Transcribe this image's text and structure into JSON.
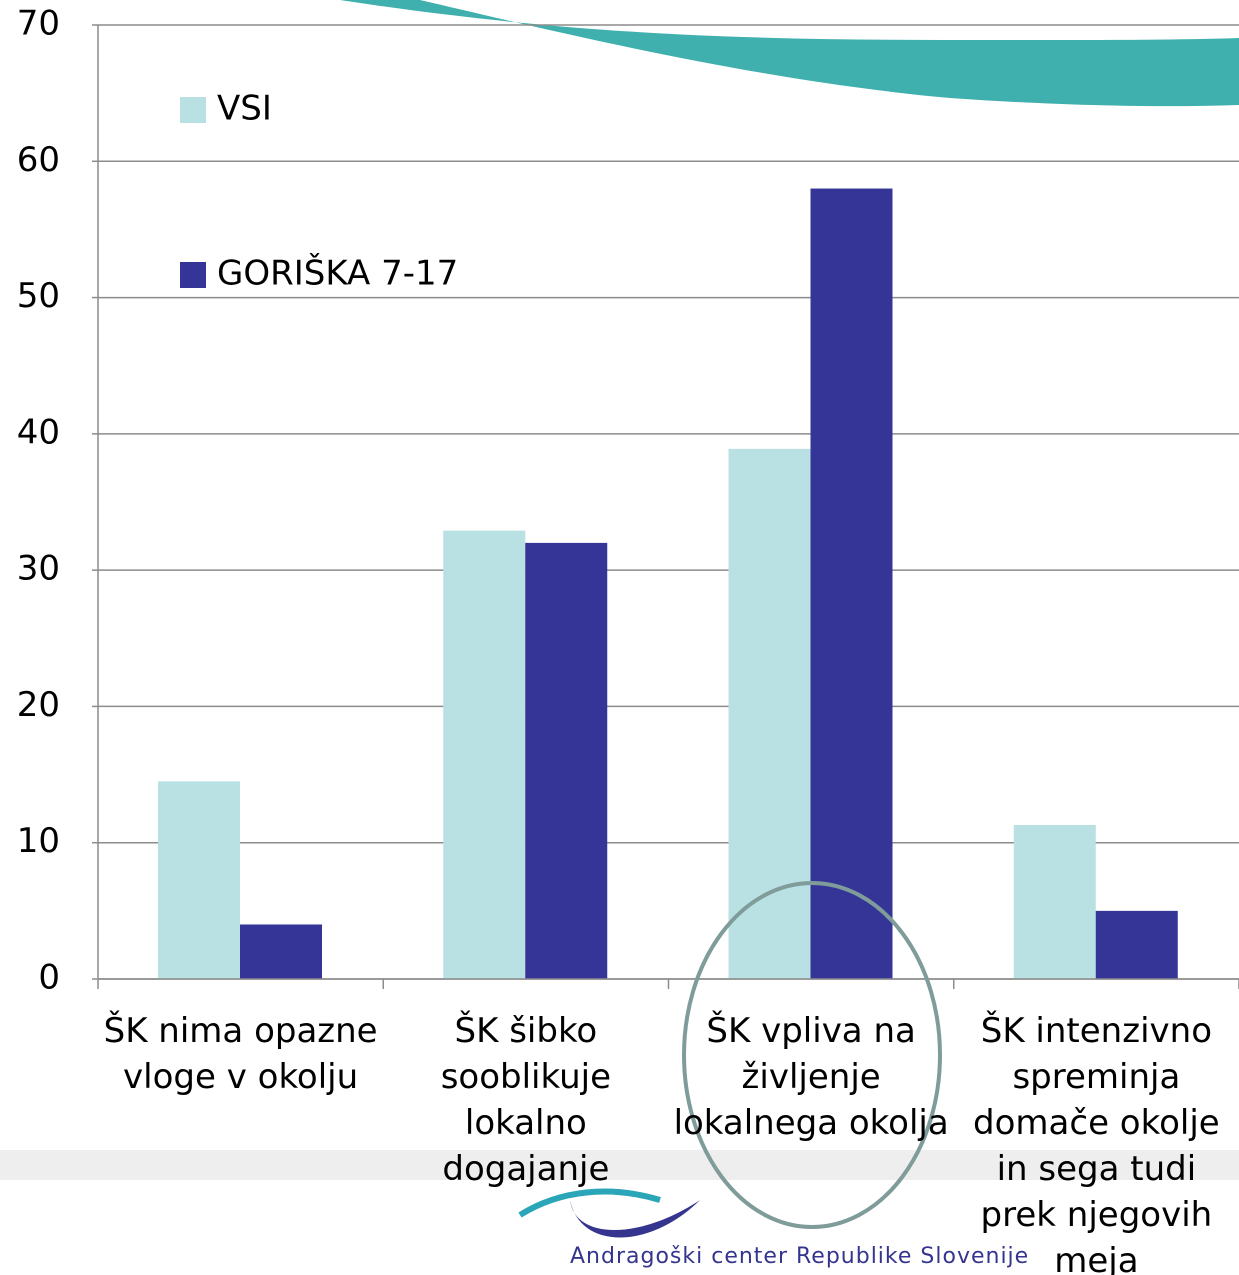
{
  "chart_data": {
    "type": "bar",
    "categories": [
      "ŠK nima opazne vloge v okolju",
      "ŠK šibko sooblikuje lokalno dogajanje",
      "ŠK vpliva na življenje lokalnega okolja",
      "ŠK intenzivno spreminja domače okolje in sega tudi prek njegovih meja"
    ],
    "series": [
      {
        "name": "VSI",
        "color": "#b9e0e2",
        "values": [
          14.5,
          32.9,
          38.9,
          11.3
        ]
      },
      {
        "name": "GORIŠKA 7-17",
        "color": "#353597",
        "values": [
          4,
          32,
          58,
          5
        ]
      }
    ],
    "ylim": [
      0,
      70
    ],
    "yticks": [
      0,
      10,
      20,
      30,
      40,
      50,
      60,
      70
    ],
    "grid": true,
    "legend": "upper left",
    "footer": "Andragoški center Republike Slovenije"
  }
}
